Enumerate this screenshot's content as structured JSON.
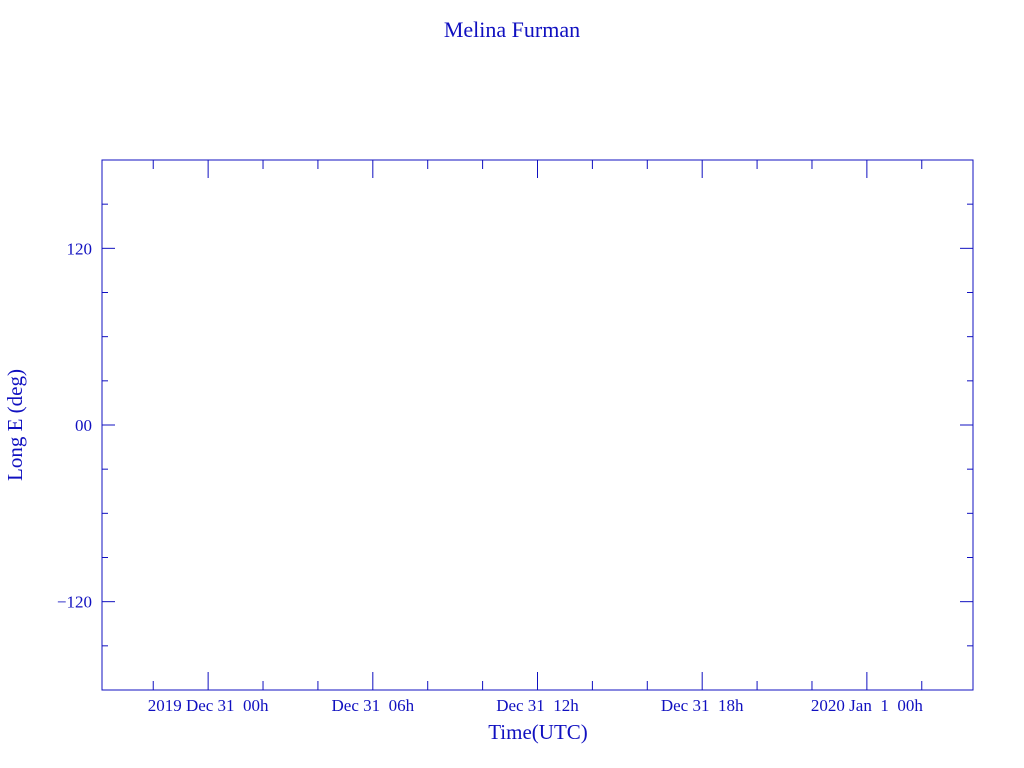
{
  "chart_data": {
    "type": "line",
    "title": "Melina Furman",
    "xlabel": "Time(UTC)",
    "ylabel": "Long E (deg)",
    "xlim": [
      "2019-12-30T20:08",
      "2020-01-01T03:52"
    ],
    "ylim": [
      -180,
      180
    ],
    "x_ticks": [
      {
        "t": "2019-12-31T00:00",
        "label": "2019 Dec 31  00h"
      },
      {
        "t": "2019-12-31T06:00",
        "label": "Dec 31  06h"
      },
      {
        "t": "2019-12-31T12:00",
        "label": "Dec 31  12h"
      },
      {
        "t": "2019-12-31T18:00",
        "label": "Dec 31  18h"
      },
      {
        "t": "2020-01-01T00:00",
        "label": "2020 Jan  1  00h"
      }
    ],
    "x_minor_step_hours": 2,
    "y_ticks": [
      {
        "v": 120,
        "label": "120"
      },
      {
        "v": 0,
        "label": "00"
      },
      {
        "v": -120,
        "label": "−120"
      }
    ],
    "y_minor_step": 30,
    "grid": false,
    "series": [],
    "color": "#1010c0"
  }
}
